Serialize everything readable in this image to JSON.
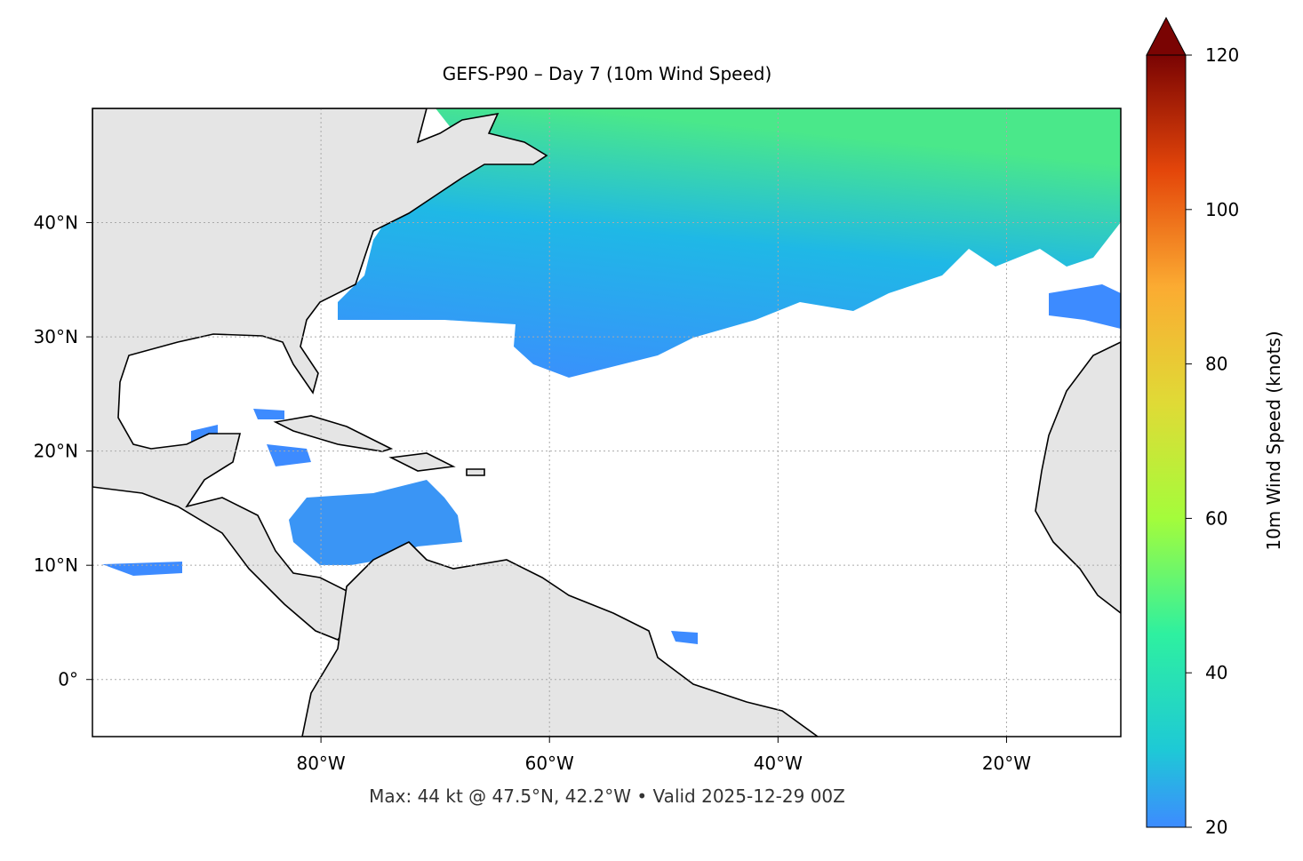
{
  "map": {
    "title": "GEFS-P90 – Day 7 (10m Wind Speed)",
    "note": "Max: 44 kt @ 47.5°N, 42.2°W • Valid 2025-12-29 00Z",
    "lonlim": [
      -100,
      -10
    ],
    "latlim": [
      -5,
      50
    ],
    "lonticks": [
      {
        "value": -80,
        "label": "80°W"
      },
      {
        "value": -60,
        "label": "60°W"
      },
      {
        "value": -40,
        "label": "40°W"
      },
      {
        "value": -20,
        "label": "20°W"
      }
    ],
    "latticks": [
      {
        "value": 0,
        "label": "0°"
      },
      {
        "value": 10,
        "label": "10°N"
      },
      {
        "value": 20,
        "label": "20°N"
      },
      {
        "value": 30,
        "label": "30°N"
      },
      {
        "value": 40,
        "label": "40°N"
      }
    ],
    "colorbar": {
      "label": "10m Wind Speed (knots)",
      "lim": [
        20,
        120
      ],
      "ticks": [
        20,
        40,
        60,
        80,
        100,
        120
      ]
    }
  }
}
